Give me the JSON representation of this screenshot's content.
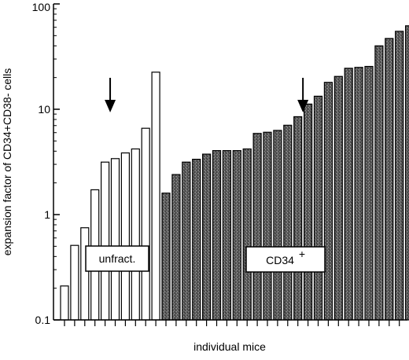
{
  "chart_data": {
    "type": "bar",
    "title": "",
    "xlabel": "individual mice",
    "ylabel": "expansion factor of CD34+CD38- cells",
    "yscale": "log",
    "ylim": [
      0.1,
      100
    ],
    "y_ticks": [
      {
        "value": 0.1,
        "label": "0.1"
      },
      {
        "value": 1,
        "label": "1"
      },
      {
        "value": 10,
        "label": "10"
      },
      {
        "value": 100,
        "label": "100"
      }
    ],
    "grid": false,
    "legend": "none",
    "series": [
      {
        "group_label": "unfract.",
        "fill": "open",
        "values": [
          0.21,
          0.51,
          0.75,
          1.72,
          3.15,
          3.4,
          3.85,
          4.2,
          6.6,
          22.5
        ]
      },
      {
        "group_label": "CD34",
        "group_label_superscript": "+",
        "fill": "stippled",
        "values": [
          1.6,
          2.4,
          3.15,
          3.35,
          3.75,
          4.05,
          4.05,
          4.05,
          4.2,
          5.9,
          6.05,
          6.3,
          7.05,
          8.5,
          11.2,
          13.3,
          18.0,
          20.5,
          24.5,
          25.0,
          25.5,
          40.0,
          47.0,
          55.0,
          62.0
        ]
      }
    ],
    "annotations": [
      {
        "type": "arrow-down",
        "x_index": 4.5,
        "tip_value": 10
      },
      {
        "type": "arrow-down",
        "x_index": 23.5,
        "tip_value": 10
      }
    ],
    "colors": {
      "open_fill": "#ffffff",
      "stippled_fill": "#5a5a5a",
      "stroke": "#000000"
    }
  }
}
